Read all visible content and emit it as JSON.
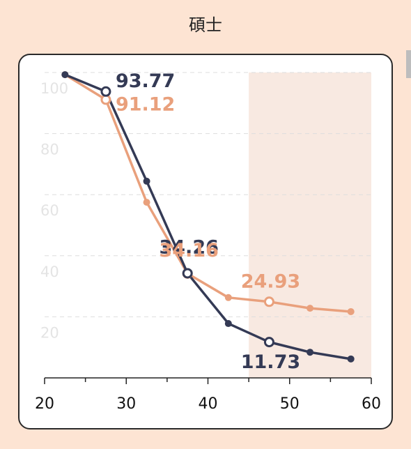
{
  "chart_data": {
    "type": "line",
    "title": "碩士",
    "x": [
      22.5,
      27.5,
      32.5,
      37.5,
      42.5,
      47.5,
      52.5,
      57.5
    ],
    "series": [
      {
        "name": "dark",
        "color": "#343a55",
        "values": [
          99.3,
          93.77,
          64.4,
          34.26,
          17.8,
          11.73,
          8.4,
          6.2
        ],
        "labeled_points": [
          1,
          3,
          5
        ]
      },
      {
        "name": "light",
        "color": "#e9a07c",
        "values": [
          99.3,
          91.12,
          57.5,
          34.16,
          26.3,
          24.93,
          22.8,
          21.7
        ],
        "labeled_points": [
          1,
          3,
          5
        ]
      }
    ],
    "xlim": [
      20,
      60
    ],
    "xticks": [
      20,
      30,
      40,
      50,
      60
    ],
    "x_minor_ticks": [
      25,
      35,
      45,
      55
    ],
    "ylim": [
      0,
      100
    ],
    "yticks": [
      20,
      40,
      60,
      80,
      100
    ],
    "grid": true,
    "shaded_xrange": [
      45,
      60
    ],
    "shade_color": "#f8e9e1"
  }
}
